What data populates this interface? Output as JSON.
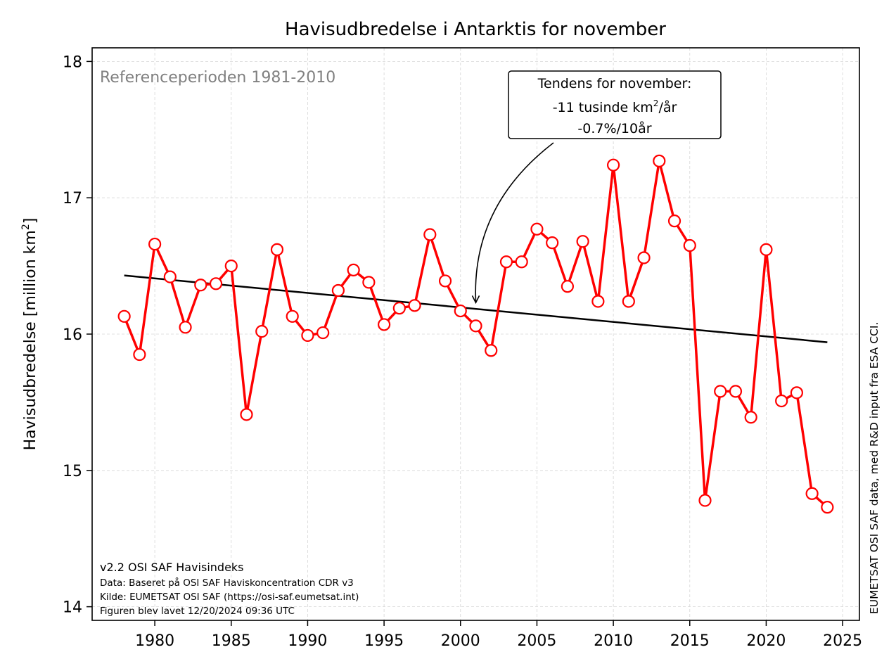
{
  "chart_data": {
    "type": "line",
    "title": "Havisudbredelse i Antarktis for november",
    "ylabel": "Havisudbredelse [million km",
    "ylabel_sup": "2",
    "ylabel_end": "]",
    "xlim": [
      1975.9,
      2026.1
    ],
    "ylim": [
      13.9,
      18.1
    ],
    "x_ticks": [
      1980,
      1985,
      1990,
      1995,
      2000,
      2005,
      2010,
      2015,
      2020,
      2025
    ],
    "y_ticks": [
      14,
      15,
      16,
      17,
      18
    ],
    "grid": true,
    "reference_text": "Referenceperioden 1981-2010",
    "trend": {
      "x": [
        1978,
        2024
      ],
      "y": [
        16.43,
        15.94
      ]
    },
    "annotation": {
      "line1": "Tendens for november:",
      "line2a": "-11 tusinde km",
      "line2sup": "2",
      "line2b": "/år",
      "line3": "-0.7%/10år",
      "arrow_to": {
        "x": 2001,
        "y": 16.22
      }
    },
    "series": [
      {
        "color": "#ff0000",
        "x": [
          1978,
          1979,
          1980,
          1981,
          1982,
          1983,
          1984,
          1985,
          1986,
          1987,
          1988,
          1989,
          1990,
          1991,
          1992,
          1993,
          1994,
          1995,
          1996,
          1997,
          1998,
          1999,
          2000,
          2001,
          2002,
          2003,
          2004,
          2005,
          2006,
          2007,
          2008,
          2009,
          2010,
          2011,
          2012,
          2013,
          2014,
          2015,
          2016,
          2017,
          2018,
          2019,
          2020,
          2021,
          2022,
          2023,
          2024
        ],
        "y": [
          16.13,
          15.85,
          16.66,
          16.42,
          16.05,
          16.36,
          16.37,
          16.5,
          15.41,
          16.02,
          16.62,
          16.13,
          15.99,
          16.01,
          16.32,
          16.47,
          16.38,
          16.07,
          16.19,
          16.21,
          16.73,
          16.39,
          16.17,
          16.06,
          15.88,
          16.53,
          16.53,
          16.77,
          16.67,
          16.35,
          16.68,
          16.24,
          17.24,
          16.24,
          16.56,
          17.27,
          16.83,
          16.65,
          14.78,
          15.58,
          15.58,
          15.39,
          16.62,
          15.51,
          15.57,
          14.83,
          14.73
        ]
      }
    ],
    "footer": [
      "v2.2 OSI SAF Havisindeks",
      "Data: Baseret på OSI SAF Haviskoncentration CDR v3",
      "Kilde: EUMETSAT OSI SAF (https://osi-saf.eumetsat.int)",
      "Figuren blev lavet 12/20/2024 09:36 UTC"
    ],
    "side_text": "EUMETSAT OSI SAF data, med R&D input fra ESA CCI."
  }
}
